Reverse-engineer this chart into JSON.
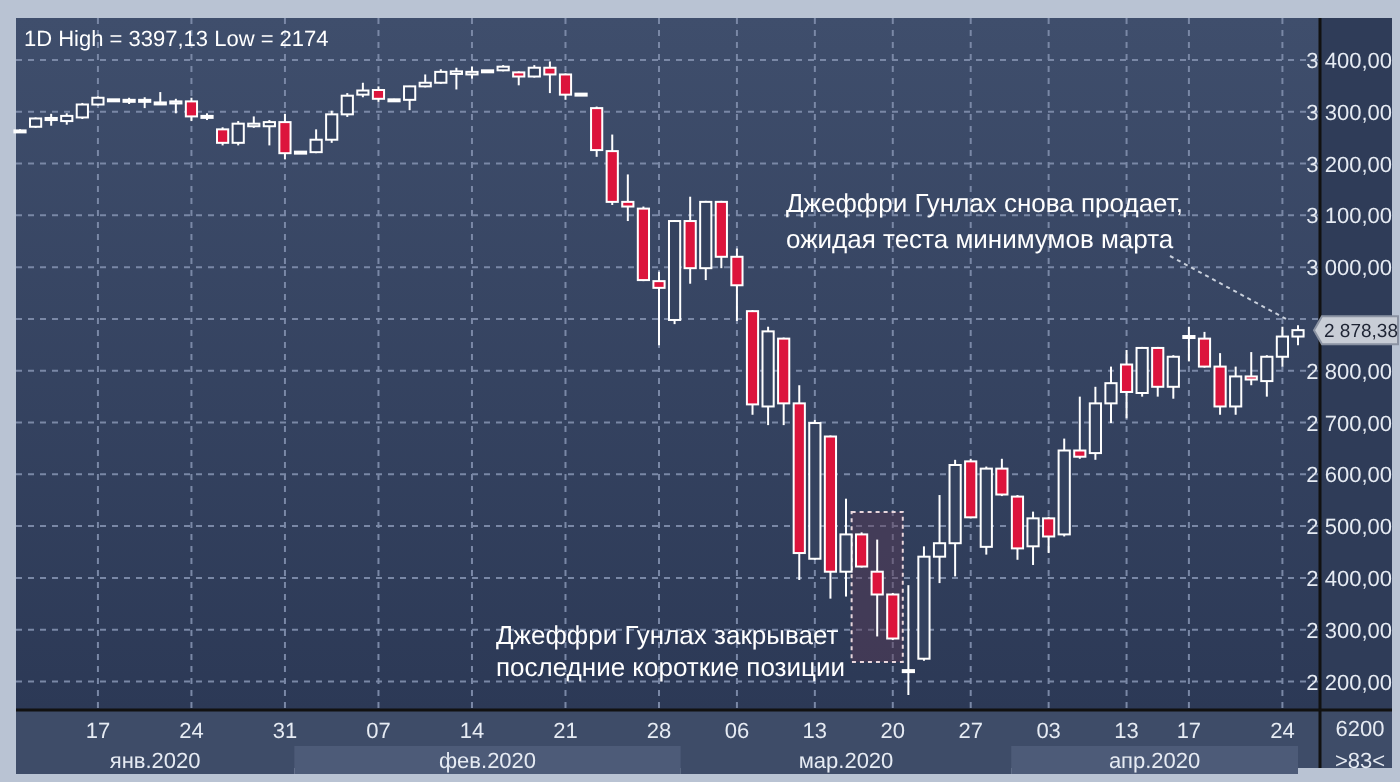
{
  "chart_data": {
    "type": "candlestick",
    "title": "1D High = 3397,13 Low = 2174",
    "categories": [
      null,
      null,
      null,
      null,
      null,
      "17",
      null,
      null,
      null,
      null,
      null,
      "24",
      null,
      null,
      null,
      null,
      null,
      "31",
      null,
      null,
      null,
      null,
      null,
      "07",
      null,
      null,
      null,
      null,
      null,
      "14",
      null,
      null,
      null,
      null,
      null,
      "21",
      null,
      null,
      null,
      null,
      null,
      "28",
      null,
      null,
      null,
      null,
      "06",
      null,
      null,
      null,
      null,
      "13",
      null,
      null,
      null,
      null,
      "20",
      null,
      null,
      null,
      null,
      "27",
      null,
      null,
      null,
      null,
      "03",
      null,
      null,
      null,
      null,
      "13",
      null,
      null,
      null,
      "17",
      null,
      null,
      null,
      null,
      null,
      "24",
      null
    ],
    "ohlc": [
      [
        3264,
        3266,
        3262,
        3264
      ],
      [
        3271,
        3289,
        3269,
        3287
      ],
      [
        3284,
        3296,
        3273,
        3288
      ],
      [
        3282,
        3297,
        3275,
        3292
      ],
      [
        3289,
        3317,
        3286,
        3314
      ],
      [
        3314,
        3330,
        3312,
        3327
      ],
      [
        3322,
        3324,
        3321,
        3324
      ],
      [
        3322,
        3327,
        3315,
        3323
      ],
      [
        3321,
        3328,
        3307,
        3323
      ],
      [
        3317,
        3338,
        3316,
        3318
      ],
      [
        3316,
        3325,
        3297,
        3320
      ],
      [
        3320,
        3327,
        3282,
        3291
      ],
      [
        3290,
        3297,
        3284,
        3292
      ],
      [
        3266,
        3270,
        3235,
        3240
      ],
      [
        3240,
        3282,
        3235,
        3277
      ],
      [
        3272,
        3291,
        3269,
        3277
      ],
      [
        3272,
        3284,
        3235,
        3280
      ],
      [
        3280,
        3296,
        3208,
        3220
      ],
      [
        3222,
        3224,
        3221,
        3223
      ],
      [
        3222,
        3266,
        3220,
        3246
      ],
      [
        3246,
        3302,
        3240,
        3295
      ],
      [
        3295,
        3336,
        3290,
        3331
      ],
      [
        3333,
        3356,
        3328,
        3341
      ],
      [
        3342,
        3349,
        3319,
        3325
      ],
      [
        3323,
        3325,
        3322,
        3324
      ],
      [
        3323,
        3350,
        3303,
        3349
      ],
      [
        3349,
        3372,
        3347,
        3356
      ],
      [
        3356,
        3382,
        3354,
        3377
      ],
      [
        3373,
        3385,
        3343,
        3378
      ],
      [
        3372,
        3387,
        3364,
        3377
      ],
      [
        3378,
        3380,
        3377,
        3380
      ],
      [
        3380,
        3390,
        3378,
        3387
      ],
      [
        3376,
        3378,
        3351,
        3368
      ],
      [
        3368,
        3390,
        3366,
        3385
      ],
      [
        3385,
        3397.13,
        3336,
        3372
      ],
      [
        3372,
        3374,
        3323,
        3333
      ],
      [
        3334,
        3336,
        3333,
        3335
      ],
      [
        3307,
        3310,
        3213,
        3226
      ],
      [
        3224,
        3256,
        3120,
        3126
      ],
      [
        3126,
        3179,
        3089,
        3117
      ],
      [
        3113,
        3117,
        2973,
        2975
      ],
      [
        2973,
        2991,
        2849,
        2960
      ],
      [
        2898,
        3091,
        2890,
        3089
      ],
      [
        3089,
        3136,
        2968,
        2998
      ],
      [
        2998,
        3128,
        2975,
        3126
      ],
      [
        3126,
        3128,
        2998,
        3020
      ],
      [
        3020,
        3036,
        2896,
        2965
      ],
      [
        2915,
        2917,
        2715,
        2735
      ],
      [
        2731,
        2885,
        2695,
        2876
      ],
      [
        2862,
        2864,
        2695,
        2737
      ],
      [
        2737,
        2772,
        2396,
        2448
      ],
      [
        2437,
        2705,
        2435,
        2699
      ],
      [
        2673,
        2675,
        2360,
        2412
      ],
      [
        2412,
        2553,
        2364,
        2484
      ],
      [
        2484,
        2488,
        2420,
        2422
      ],
      [
        2412,
        2474,
        2287,
        2368
      ],
      [
        2368,
        2371,
        2280,
        2283
      ],
      [
        2220,
        2386,
        2174,
        2222
      ],
      [
        2244,
        2461,
        2240,
        2441
      ],
      [
        2441,
        2560,
        2390,
        2467
      ],
      [
        2467,
        2628,
        2403,
        2618
      ],
      [
        2625,
        2630,
        2515,
        2517
      ],
      [
        2460,
        2615,
        2445,
        2611
      ],
      [
        2611,
        2630,
        2558,
        2561
      ],
      [
        2557,
        2560,
        2435,
        2457
      ],
      [
        2461,
        2528,
        2425,
        2515
      ],
      [
        2515,
        2518,
        2448,
        2480
      ],
      [
        2484,
        2669,
        2480,
        2646
      ],
      [
        2646,
        2750,
        2630,
        2634
      ],
      [
        2641,
        2769,
        2628,
        2737
      ],
      [
        2737,
        2808,
        2699,
        2776
      ],
      [
        2812,
        2840,
        2708,
        2759
      ],
      [
        2757,
        2846,
        2750,
        2844
      ],
      [
        2844,
        2846,
        2750,
        2769
      ],
      [
        2769,
        2830,
        2746,
        2827
      ],
      [
        2865,
        2885,
        2818,
        2867
      ],
      [
        2862,
        2875,
        2806,
        2808
      ],
      [
        2808,
        2834,
        2715,
        2731
      ],
      [
        2731,
        2808,
        2715,
        2789
      ],
      [
        2789,
        2836,
        2772,
        2783
      ],
      [
        2780,
        2830,
        2750,
        2827
      ],
      [
        2827,
        2885,
        2808,
        2866
      ],
      [
        2866,
        2888,
        2849,
        2878.38
      ]
    ],
    "ylim": [
      2145,
      3481
    ],
    "yticks": [
      {
        "value": 2200,
        "label": "2 200,00"
      },
      {
        "value": 2300,
        "label": "2 300,00"
      },
      {
        "value": 2400,
        "label": "2 400,00"
      },
      {
        "value": 2500,
        "label": "2 500,00"
      },
      {
        "value": 2600,
        "label": "2 600,00"
      },
      {
        "value": 2700,
        "label": "2 700,00"
      },
      {
        "value": 2800,
        "label": "2 800,00"
      },
      {
        "value": 2900,
        "label": null
      },
      {
        "value": 3000,
        "label": "3 000,00"
      },
      {
        "value": 3100,
        "label": "3 100,00"
      },
      {
        "value": 3200,
        "label": "3 200,00"
      },
      {
        "value": 3300,
        "label": "3 300,00"
      },
      {
        "value": 3400,
        "label": "3 400,00"
      }
    ],
    "grid": true,
    "annotations": [
      "Джеффри Гунлах снова продает,\nожидая теста минимумов марта",
      "Джеффри Гунлах закрывает\nпоследние короткие позиции",
      "янв.2020",
      "фев.2020",
      "мар.2020",
      "апр.2020",
      "6200",
      ">83<",
      "2 878,38"
    ]
  }
}
